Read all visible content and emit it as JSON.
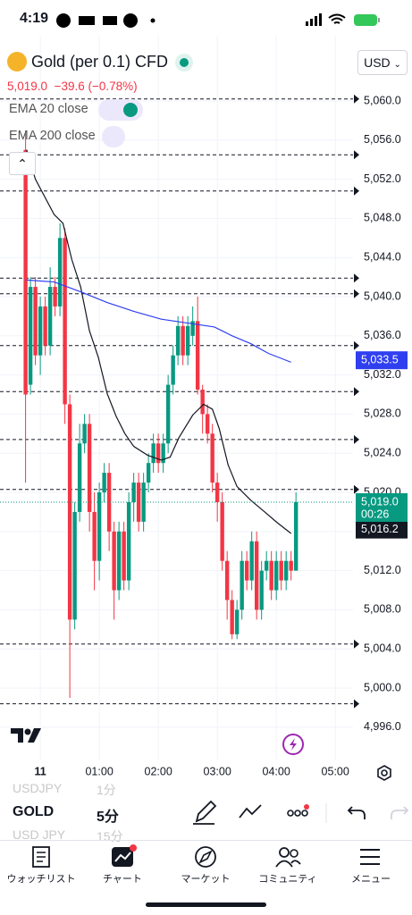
{
  "status_bar": {
    "time": "4:19"
  },
  "header": {
    "symbol": "Gold (per 0.1) CFD",
    "currency": "USD",
    "price": "5,019.0",
    "change": "−39.6 (−0.78%)"
  },
  "chart_data": {
    "type": "candlestick",
    "x": [
      -15,
      -10,
      -5,
      0,
      5,
      10,
      15,
      20,
      25,
      30,
      35,
      40,
      45,
      50,
      55,
      60,
      65,
      70,
      75,
      80,
      85,
      90,
      95,
      100,
      105,
      110,
      115,
      120,
      125,
      130,
      135,
      140,
      145,
      150,
      155,
      160,
      165,
      170,
      175,
      180,
      185,
      190,
      195,
      200,
      205,
      210,
      215,
      220,
      225,
      230,
      235,
      240,
      245,
      250,
      255,
      260
    ],
    "open": [
      5055,
      5031,
      5041,
      5034,
      5039,
      5035,
      5041,
      5039,
      5046,
      5029,
      5007,
      5018,
      5025,
      5027,
      5018,
      5013,
      5020,
      5022,
      5016,
      5010,
      5016,
      5011,
      5019,
      5021,
      5017,
      5021,
      5023,
      5025,
      5023,
      5025,
      5031,
      5034,
      5037,
      5034,
      5036,
      5037.5,
      5030.5,
      5028,
      5026,
      5021,
      5019,
      5013,
      5009,
      5005.5,
      5008,
      5013,
      5011,
      5015,
      5008,
      5012,
      5013,
      5010,
      5013,
      5011,
      5013,
      5012
    ],
    "high": [
      5057,
      5042,
      5042,
      5040,
      5040,
      5043,
      5042,
      5047.5,
      5047,
      5030,
      5019,
      5027,
      5028,
      5028,
      5020,
      5021,
      5023,
      5023,
      5017,
      5017,
      5017,
      5020,
      5022,
      5022,
      5022,
      5024,
      5026,
      5026,
      5026,
      5032,
      5035,
      5038,
      5038,
      5038,
      5039,
      5040,
      5031,
      5029,
      5027,
      5022,
      5020,
      5014,
      5010,
      5009,
      5014,
      5014,
      5016,
      5016,
      5013,
      5014,
      5014,
      5014,
      5014,
      5014,
      5014,
      5020
    ],
    "low": [
      5021,
      5030,
      5033,
      5032,
      5034,
      5034,
      5038,
      5038,
      5027,
      4999,
      5006,
      5017,
      5024,
      5016,
      5010,
      5011,
      5019,
      5014,
      5007,
      5009,
      5010,
      5010,
      5017,
      5016,
      5016,
      5020,
      5022,
      5022,
      5022,
      5024,
      5030,
      5033,
      5033,
      5033,
      5035,
      5030,
      5026,
      5025,
      5020,
      5017,
      5012,
      5007,
      5005,
      5005,
      5007,
      5010,
      5010,
      5007,
      5007,
      5011,
      5009,
      5009,
      5010,
      5010,
      5011,
      5012
    ],
    "close": [
      5030,
      5041,
      5034,
      5039,
      5035,
      5041,
      5039,
      5046,
      5029,
      5007,
      5018,
      5025,
      5027,
      5018,
      5013,
      5020,
      5022,
      5016,
      5010,
      5016,
      5011,
      5019,
      5021,
      5017,
      5021,
      5023,
      5025,
      5023,
      5025,
      5031,
      5034,
      5037,
      5034,
      5037,
      5037.5,
      5030.5,
      5028,
      5026,
      5021,
      5019,
      5013,
      5009,
      5005.5,
      5008,
      5013,
      5011,
      5015,
      5008,
      5012,
      5013,
      5010,
      5013,
      5011,
      5013,
      5012,
      5019
    ],
    "up_color": "#089981",
    "down_color": "#f23645",
    "series": [
      {
        "name": "EMA 20 close",
        "color": "#131722",
        "x": [
          -14,
          -5,
          14,
          23,
          32,
          41,
          50,
          59,
          68,
          77,
          86,
          95,
          109,
          123,
          132,
          141,
          155,
          166,
          175,
          182,
          191,
          200,
          214,
          227,
          241,
          255
        ],
        "values": [
          5055,
          5052,
          5048.4,
          5047.5,
          5043.8,
          5041,
          5036.5,
          5033.8,
          5030.1,
          5027.8,
          5026,
          5024.7,
          5023.8,
          5023.3,
          5023.6,
          5025.6,
          5027.9,
          5029,
          5028.5,
          5026.5,
          5022.8,
          5020.6,
          5019.2,
          5018.1,
          5016.9,
          5015.8
        ],
        "last_label": {
          "value": 5016.2,
          "label": "5,016.2"
        }
      },
      {
        "name": "EMA 200 close",
        "color": "#2f3ff0",
        "x": [
          -14,
          14,
          41,
          68,
          95,
          123,
          150,
          177,
          195,
          214,
          232,
          255
        ],
        "values": [
          5041.7,
          5041.5,
          5040.5,
          5039.4,
          5038.5,
          5037.7,
          5037.3,
          5036.9,
          5036,
          5035.2,
          5034.2,
          5033.3
        ],
        "last_label": {
          "value": 5033.5,
          "label": "5,033.5"
        }
      }
    ],
    "last_price": {
      "value": 5019.0,
      "label": "5,019.0",
      "countdown": "00:26"
    },
    "alert_lines": [
      5060.2,
      5054.5,
      5050.8,
      5041.9,
      5040.3,
      5035,
      5030.3,
      5025.4,
      5020.3,
      5004.5,
      4998.4
    ],
    "xlim": [
      -41,
      318
    ],
    "xticks": [
      {
        "value": 0,
        "label": "11"
      },
      {
        "value": 60,
        "label": "01:00"
      },
      {
        "value": 120,
        "label": "02:00"
      },
      {
        "value": 180,
        "label": "03:00"
      },
      {
        "value": 240,
        "label": "04:00"
      },
      {
        "value": 300,
        "label": "05:00"
      }
    ],
    "ylim": [
      4992.7,
      5065.75
    ],
    "yticks": [
      {
        "value": 5060,
        "label": "5,060.0"
      },
      {
        "value": 5056,
        "label": "5,056.0"
      },
      {
        "value": 5052,
        "label": "5,052.0"
      },
      {
        "value": 5048,
        "label": "5,048.0"
      },
      {
        "value": 5044,
        "label": "5,044.0"
      },
      {
        "value": 5040,
        "label": "5,040.0"
      },
      {
        "value": 5036,
        "label": "5,036.0"
      },
      {
        "value": 5032,
        "label": "5,032.0"
      },
      {
        "value": 5028,
        "label": "5,028.0"
      },
      {
        "value": 5024,
        "label": "5,024.0"
      },
      {
        "value": 5020,
        "label": "5,020.0"
      },
      {
        "value": 5016,
        "label": "5,016.0"
      },
      {
        "value": 5012,
        "label": "5,012.0"
      },
      {
        "value": 5008,
        "label": "5,008.0"
      },
      {
        "value": 5004,
        "label": "5,004.0"
      },
      {
        "value": 5000,
        "label": "5,000.0"
      },
      {
        "value": 4996,
        "label": "4,996.0"
      }
    ],
    "grid": true
  },
  "symbol_list": [
    {
      "symbol": "USDJPY",
      "interval": "1分"
    },
    {
      "symbol": "GOLD",
      "interval": "5分"
    },
    {
      "symbol": "USD JPY",
      "interval": "15分"
    }
  ],
  "nav": [
    "ウォッチリスト",
    "チャート",
    "マーケット",
    "コミュニティ",
    "メニュー"
  ]
}
